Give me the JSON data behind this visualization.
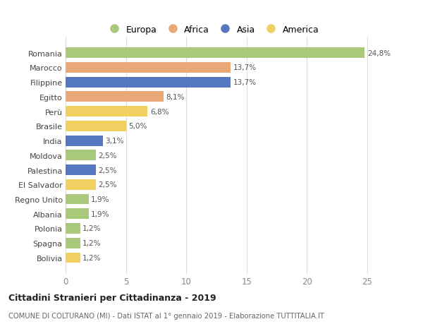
{
  "countries": [
    "Romania",
    "Marocco",
    "Filippine",
    "Egitto",
    "Perù",
    "Brasile",
    "India",
    "Moldova",
    "Palestina",
    "El Salvador",
    "Regno Unito",
    "Albania",
    "Polonia",
    "Spagna",
    "Bolivia"
  ],
  "values": [
    24.8,
    13.7,
    13.7,
    8.1,
    6.8,
    5.0,
    3.1,
    2.5,
    2.5,
    2.5,
    1.9,
    1.9,
    1.2,
    1.2,
    1.2
  ],
  "labels": [
    "24,8%",
    "13,7%",
    "13,7%",
    "8,1%",
    "6,8%",
    "5,0%",
    "3,1%",
    "2,5%",
    "2,5%",
    "2,5%",
    "1,9%",
    "1,9%",
    "1,2%",
    "1,2%",
    "1,2%"
  ],
  "continents": [
    "Europa",
    "Africa",
    "Asia",
    "Africa",
    "America",
    "America",
    "Asia",
    "Europa",
    "Asia",
    "America",
    "Europa",
    "Europa",
    "Europa",
    "Europa",
    "America"
  ],
  "colors": {
    "Europa": "#a8c87a",
    "Africa": "#e8a878",
    "Asia": "#5577c0",
    "America": "#f0d060"
  },
  "title": "Cittadini Stranieri per Cittadinanza - 2019",
  "subtitle": "COMUNE DI COLTURANO (MI) - Dati ISTAT al 1° gennaio 2019 - Elaborazione TUTTITALIA.IT",
  "xlim": [
    0,
    27
  ],
  "xticks": [
    0,
    5,
    10,
    15,
    20,
    25
  ],
  "background_color": "#ffffff",
  "grid_color": "#dddddd"
}
